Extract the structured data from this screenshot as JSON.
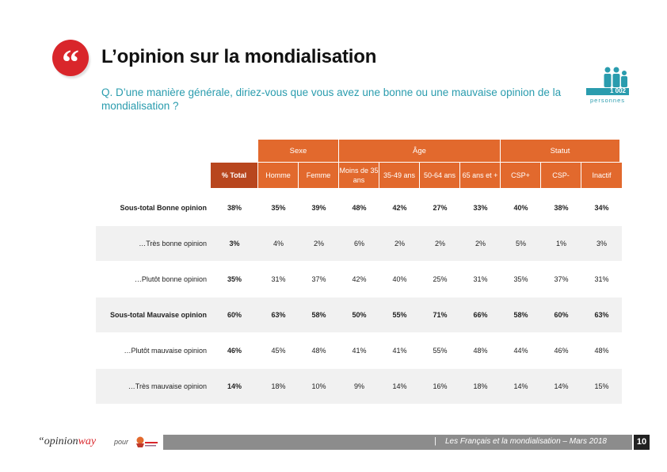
{
  "header": {
    "quote_glyph": "“",
    "title": "L’opinion sur la mondialisation",
    "question": "Q. D’une manière générale, diriez-vous que vous avez une bonne ou une mauvaise opinion de la mondialisation ?"
  },
  "sample": {
    "count": "1 002",
    "label": "personnes"
  },
  "table": {
    "groups": {
      "sexe": "Sexe",
      "age": "Âge",
      "statut": "Statut"
    },
    "columns": [
      "% Total",
      "Homme",
      "Femme",
      "Moins de 35 ans",
      "35-49 ans",
      "50-64 ans",
      "65 ans et +",
      "CSP+",
      "CSP-",
      "Inactif"
    ],
    "rows": [
      {
        "label": "Sous-total Bonne opinion",
        "values": [
          "38%",
          "35%",
          "39%",
          "48%",
          "42%",
          "27%",
          "33%",
          "40%",
          "38%",
          "34%"
        ]
      },
      {
        "label": "…Très bonne opinion",
        "values": [
          "3%",
          "4%",
          "2%",
          "6%",
          "2%",
          "2%",
          "2%",
          "5%",
          "1%",
          "3%"
        ]
      },
      {
        "label": "…Plutôt bonne opinion",
        "values": [
          "35%",
          "31%",
          "37%",
          "42%",
          "40%",
          "25%",
          "31%",
          "35%",
          "37%",
          "31%"
        ]
      },
      {
        "label": "Sous-total Mauvaise opinion",
        "values": [
          "60%",
          "63%",
          "58%",
          "50%",
          "55%",
          "71%",
          "66%",
          "58%",
          "60%",
          "63%"
        ]
      },
      {
        "label": "…Plutôt mauvaise opinion",
        "values": [
          "46%",
          "45%",
          "48%",
          "41%",
          "41%",
          "55%",
          "48%",
          "44%",
          "46%",
          "48%"
        ]
      },
      {
        "label": "…Très mauvaise opinion",
        "values": [
          "14%",
          "18%",
          "10%",
          "9%",
          "14%",
          "16%",
          "18%",
          "14%",
          "14%",
          "15%"
        ]
      }
    ]
  },
  "footer": {
    "brand_opinion": "opinion",
    "brand_way": "way",
    "brand_quote": "“",
    "pour": "pour",
    "caption": "Les Français et la mondialisation – Mars 2018",
    "separator": "|",
    "page": "10"
  },
  "colors": {
    "accent": "#e2692d",
    "total_header": "#b8461e",
    "teal": "#2a9cae",
    "red": "#d9262b"
  }
}
